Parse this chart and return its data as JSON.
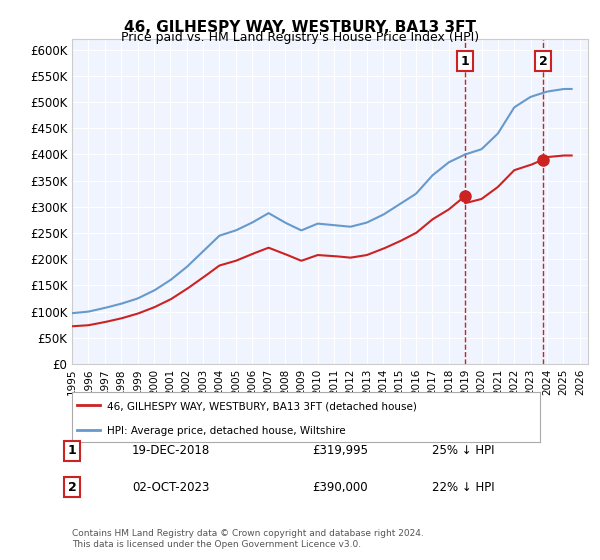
{
  "title": "46, GILHESPY WAY, WESTBURY, BA13 3FT",
  "subtitle": "Price paid vs. HM Land Registry's House Price Index (HPI)",
  "xlabel": "",
  "ylabel": "",
  "ylim": [
    0,
    620000
  ],
  "yticks": [
    0,
    50000,
    100000,
    150000,
    200000,
    250000,
    300000,
    350000,
    400000,
    450000,
    500000,
    550000,
    600000
  ],
  "ytick_labels": [
    "£0",
    "£50K",
    "£100K",
    "£150K",
    "£200K",
    "£250K",
    "£300K",
    "£350K",
    "£400K",
    "£450K",
    "£500K",
    "£550K",
    "£600K"
  ],
  "xlim_start": 1995.0,
  "xlim_end": 2026.5,
  "hpi_color": "#6699cc",
  "price_color": "#cc2222",
  "sale1_year": 2018.97,
  "sale1_price": 319995,
  "sale2_year": 2023.75,
  "sale2_price": 390000,
  "sale1_label": "1",
  "sale2_label": "2",
  "legend_price_label": "46, GILHESPY WAY, WESTBURY, BA13 3FT (detached house)",
  "legend_hpi_label": "HPI: Average price, detached house, Wiltshire",
  "annotation1_num": "1",
  "annotation1_date": "19-DEC-2018",
  "annotation1_price": "£319,995",
  "annotation1_pct": "25% ↓ HPI",
  "annotation2_num": "2",
  "annotation2_date": "02-OCT-2023",
  "annotation2_price": "£390,000",
  "annotation2_pct": "22% ↓ HPI",
  "footer": "Contains HM Land Registry data © Crown copyright and database right 2024.\nThis data is licensed under the Open Government Licence v3.0.",
  "background_color": "#f0f4ff",
  "plot_bg": "#f0f4ff"
}
